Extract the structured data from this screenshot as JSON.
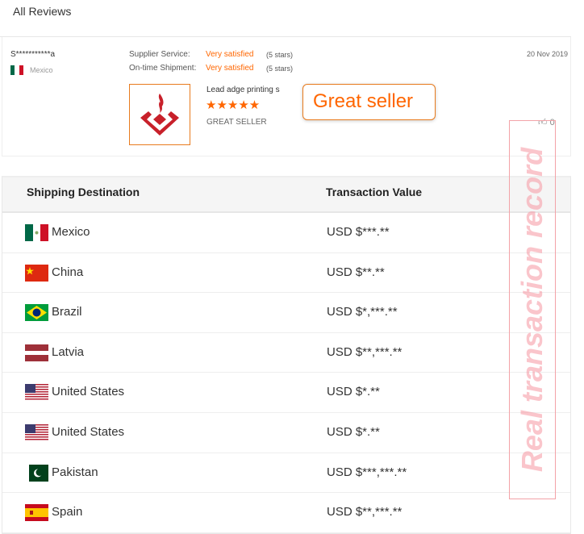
{
  "header": {
    "title": "All Reviews"
  },
  "review": {
    "buyer_name": "S***********a",
    "buyer_country": "Mexico",
    "supplier_service_label": "Supplier Service:",
    "supplier_service_value": "Very satisfied",
    "supplier_service_stars": "(5 stars)",
    "shipment_label": "On-time Shipment:",
    "shipment_value": "Very satisfied",
    "shipment_stars": "(5 stars)",
    "product_name": "Lead adge printing s",
    "rating_stars": "★★★★★",
    "rating": 5,
    "comment": "GREAT SELLER",
    "callout": "Great seller",
    "date": "20 Nov 2019",
    "likes": "0",
    "accent": "#ff6600"
  },
  "table": {
    "headers": [
      "Shipping Destination",
      "Transaction Value"
    ],
    "rows": [
      {
        "country": "Mexico",
        "flag": "mx",
        "value": "USD $***.**"
      },
      {
        "country": "China",
        "flag": "cn",
        "value": "USD $**.**"
      },
      {
        "country": "Brazil",
        "flag": "br",
        "value": "USD $*,***.**"
      },
      {
        "country": "Latvia",
        "flag": "lv",
        "value": "USD $**,***.**"
      },
      {
        "country": "United States",
        "flag": "us",
        "value": "USD $*.**"
      },
      {
        "country": "United States",
        "flag": "us",
        "value": "USD $*.**"
      },
      {
        "country": "Pakistan",
        "flag": "pk",
        "value": "USD $***,***.**"
      },
      {
        "country": "Spain",
        "flag": "es",
        "value": "USD $**,***.**"
      }
    ]
  },
  "watermark": "Real transaction record"
}
